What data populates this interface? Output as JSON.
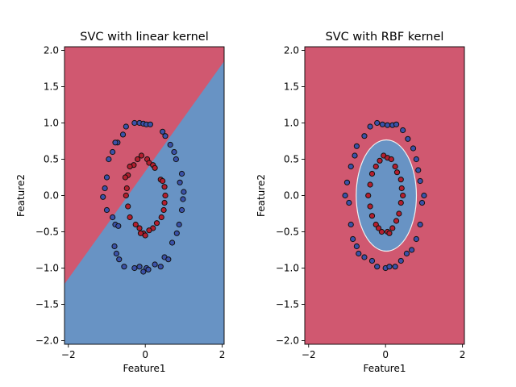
{
  "colors": {
    "region_red": "#d05870",
    "region_blue": "#6893c4",
    "point_red": "#b41e2e",
    "point_blue": "#3a51a8",
    "point_edge": "#111111"
  },
  "chart_data": [
    {
      "type": "scatter",
      "title": "SVC with linear kernel",
      "xlabel": "Feature1",
      "ylabel": "Feature2",
      "xlim": [
        -2.1,
        2.05
      ],
      "ylim": [
        -2.05,
        2.05
      ],
      "xticks": [
        -2,
        0,
        2
      ],
      "yticks": [
        "-2.0",
        "-1.5",
        "-1.0",
        "-0.5",
        "0.0",
        "0.5",
        "1.0",
        "1.5",
        "2.0"
      ],
      "decision_boundary": {
        "kind": "line",
        "points": [
          [
            -2.1,
            -1.22
          ],
          [
            2.05,
            1.85
          ]
        ],
        "upper_left_class": "red",
        "lower_right_class": "blue"
      },
      "grid": false,
      "legend": "none",
      "series": [
        {
          "class": "outer",
          "color": "blue",
          "points": [
            [
              -0.28,
              1.0
            ],
            [
              -0.15,
              1.0
            ],
            [
              -0.05,
              0.99
            ],
            [
              0.03,
              0.98
            ],
            [
              0.13,
              0.98
            ],
            [
              -0.5,
              0.95
            ],
            [
              0.45,
              0.88
            ],
            [
              0.52,
              0.82
            ],
            [
              -0.58,
              0.84
            ],
            [
              -0.72,
              0.73
            ],
            [
              -0.78,
              0.73
            ],
            [
              -0.85,
              0.6
            ],
            [
              0.65,
              0.7
            ],
            [
              0.75,
              0.6
            ],
            [
              -0.95,
              0.5
            ],
            [
              0.8,
              0.5
            ],
            [
              -1.0,
              0.25
            ],
            [
              0.95,
              0.3
            ],
            [
              0.9,
              0.18
            ],
            [
              -1.05,
              0.1
            ],
            [
              1.0,
              0.05
            ],
            [
              -1.1,
              -0.02
            ],
            [
              0.98,
              -0.05
            ],
            [
              -1.0,
              -0.2
            ],
            [
              -0.85,
              -0.3
            ],
            [
              0.95,
              -0.2
            ],
            [
              -0.78,
              -0.4
            ],
            [
              -0.7,
              -0.42
            ],
            [
              0.88,
              -0.4
            ],
            [
              0.82,
              -0.52
            ],
            [
              0.7,
              -0.65
            ],
            [
              -0.8,
              -0.7
            ],
            [
              -0.75,
              -0.8
            ],
            [
              0.5,
              -0.85
            ],
            [
              0.6,
              -0.88
            ],
            [
              -0.68,
              -0.88
            ],
            [
              -0.55,
              -0.98
            ],
            [
              0.25,
              -0.95
            ],
            [
              -0.28,
              -1.0
            ],
            [
              -0.05,
              -1.05
            ],
            [
              0.03,
              -1.0
            ],
            [
              0.4,
              -0.98
            ],
            [
              0.08,
              -1.02
            ],
            [
              -0.15,
              -0.98
            ]
          ]
        },
        {
          "class": "inner",
          "color": "red",
          "points": [
            [
              -0.1,
              0.55
            ],
            [
              -0.2,
              0.5
            ],
            [
              0.05,
              0.5
            ],
            [
              0.1,
              0.45
            ],
            [
              0.2,
              0.42
            ],
            [
              -0.3,
              0.42
            ],
            [
              -0.4,
              0.4
            ],
            [
              0.25,
              0.38
            ],
            [
              -0.45,
              0.28
            ],
            [
              -0.52,
              0.25
            ],
            [
              -0.48,
              0.1
            ],
            [
              0.4,
              0.22
            ],
            [
              0.45,
              0.2
            ],
            [
              0.5,
              0.12
            ],
            [
              -0.5,
              0.0
            ],
            [
              0.52,
              0.0
            ],
            [
              0.5,
              -0.1
            ],
            [
              -0.45,
              -0.15
            ],
            [
              -0.4,
              -0.3
            ],
            [
              0.48,
              -0.2
            ],
            [
              0.42,
              -0.3
            ],
            [
              0.3,
              -0.38
            ],
            [
              -0.25,
              -0.4
            ],
            [
              -0.15,
              -0.45
            ],
            [
              0.2,
              -0.45
            ],
            [
              0.1,
              -0.48
            ],
            [
              -0.05,
              -0.52
            ],
            [
              0.0,
              -0.55
            ],
            [
              -0.12,
              -0.52
            ]
          ]
        }
      ]
    },
    {
      "type": "scatter",
      "title": "SVC with RBF kernel",
      "xlabel": "Feature1",
      "ylabel": "Feature2",
      "xlim": [
        -2.1,
        2.05
      ],
      "ylim": [
        -2.05,
        2.05
      ],
      "xticks": [
        -2,
        0,
        2
      ],
      "yticks": [
        "-2.0",
        "-1.5",
        "-1.0",
        "-0.5",
        "0.0",
        "0.5",
        "1.0",
        "1.5",
        "2.0"
      ],
      "decision_boundary": {
        "kind": "ellipse",
        "center": [
          0.02,
          0.0
        ],
        "radii": [
          0.77,
          0.76
        ],
        "inside_class": "blue",
        "outside_class": "red"
      },
      "grid": false,
      "legend": "none",
      "series": [
        {
          "class": "outer",
          "color": "blue",
          "points": [
            [
              -0.22,
              1.0
            ],
            [
              -0.08,
              0.98
            ],
            [
              0.05,
              0.97
            ],
            [
              0.18,
              0.97
            ],
            [
              0.28,
              0.98
            ],
            [
              -0.4,
              0.95
            ],
            [
              0.45,
              0.9
            ],
            [
              -0.55,
              0.82
            ],
            [
              0.58,
              0.78
            ],
            [
              -0.75,
              0.68
            ],
            [
              -0.8,
              0.55
            ],
            [
              0.72,
              0.65
            ],
            [
              0.8,
              0.5
            ],
            [
              -0.9,
              0.4
            ],
            [
              0.85,
              0.35
            ],
            [
              -1.0,
              0.18
            ],
            [
              0.9,
              0.2
            ],
            [
              -1.05,
              0.0
            ],
            [
              1.0,
              0.0
            ],
            [
              0.95,
              -0.1
            ],
            [
              -0.95,
              -0.1
            ],
            [
              -0.9,
              -0.4
            ],
            [
              0.9,
              -0.4
            ],
            [
              -0.85,
              -0.6
            ],
            [
              0.8,
              -0.6
            ],
            [
              -0.75,
              -0.7
            ],
            [
              -0.7,
              -0.8
            ],
            [
              0.68,
              -0.75
            ],
            [
              0.55,
              -0.8
            ],
            [
              -0.55,
              -0.85
            ],
            [
              0.4,
              -0.9
            ],
            [
              -0.35,
              -0.9
            ],
            [
              -0.22,
              -0.98
            ],
            [
              0.0,
              -1.0
            ],
            [
              0.25,
              -0.98
            ],
            [
              0.1,
              -0.98
            ]
          ]
        },
        {
          "class": "inner",
          "color": "red",
          "points": [
            [
              -0.05,
              0.55
            ],
            [
              0.05,
              0.52
            ],
            [
              0.15,
              0.5
            ],
            [
              -0.15,
              0.48
            ],
            [
              -0.25,
              0.4
            ],
            [
              0.25,
              0.4
            ],
            [
              0.3,
              0.32
            ],
            [
              -0.35,
              0.3
            ],
            [
              0.4,
              0.22
            ],
            [
              -0.4,
              0.15
            ],
            [
              0.42,
              0.1
            ],
            [
              -0.45,
              0.0
            ],
            [
              0.45,
              0.0
            ],
            [
              0.4,
              -0.1
            ],
            [
              -0.4,
              -0.15
            ],
            [
              0.35,
              -0.25
            ],
            [
              -0.35,
              -0.28
            ],
            [
              0.28,
              -0.35
            ],
            [
              -0.25,
              -0.4
            ],
            [
              0.18,
              -0.45
            ],
            [
              0.05,
              -0.5
            ],
            [
              -0.1,
              -0.5
            ],
            [
              -0.18,
              -0.45
            ],
            [
              0.1,
              -0.52
            ]
          ]
        }
      ]
    }
  ]
}
